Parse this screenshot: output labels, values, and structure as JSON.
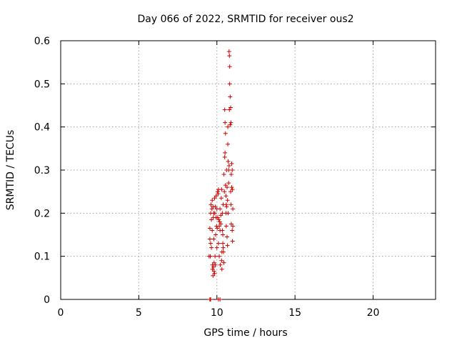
{
  "chart_data": {
    "type": "scatter",
    "title": "Day 066 of 2022, SRMTID for receiver ous2",
    "xlabel": "GPS time / hours",
    "ylabel": "SRMTID / TECUs",
    "xlim": [
      0,
      24
    ],
    "ylim": [
      0,
      0.6
    ],
    "xticks": [
      0,
      5,
      10,
      15,
      20
    ],
    "yticks": [
      0,
      0.1,
      0.2,
      0.3,
      0.4,
      0.5,
      0.6
    ],
    "xtick_labels": [
      "0",
      "5",
      "10",
      "15",
      "20"
    ],
    "ytick_labels": [
      "0",
      "0.1",
      "0.2",
      "0.3",
      "0.4",
      "0.5",
      "0.6"
    ],
    "grid": true,
    "marker": "+",
    "color": "#d00000",
    "series": [
      {
        "name": "SRMTID",
        "points": [
          [
            9.55,
            0.0
          ],
          [
            9.6,
            0.0
          ],
          [
            10.1,
            0.0
          ],
          [
            10.2,
            0.0
          ],
          [
            9.5,
            0.1
          ],
          [
            9.55,
            0.14
          ],
          [
            9.55,
            0.165
          ],
          [
            9.6,
            0.2
          ],
          [
            9.6,
            0.13
          ],
          [
            9.58,
            0.1
          ],
          [
            9.62,
            0.22
          ],
          [
            9.65,
            0.185
          ],
          [
            9.65,
            0.12
          ],
          [
            9.68,
            0.21
          ],
          [
            9.7,
            0.23
          ],
          [
            9.7,
            0.16
          ],
          [
            9.72,
            0.08
          ],
          [
            9.72,
            0.07
          ],
          [
            9.75,
            0.215
          ],
          [
            9.75,
            0.055
          ],
          [
            9.77,
            0.19
          ],
          [
            9.78,
            0.075
          ],
          [
            9.8,
            0.2
          ],
          [
            9.8,
            0.14
          ],
          [
            9.82,
            0.065
          ],
          [
            9.82,
            0.085
          ],
          [
            9.85,
            0.06
          ],
          [
            9.85,
            0.235
          ],
          [
            9.87,
            0.2
          ],
          [
            9.88,
            0.1
          ],
          [
            9.9,
            0.215
          ],
          [
            9.9,
            0.08
          ],
          [
            9.92,
            0.15
          ],
          [
            9.95,
            0.19
          ],
          [
            9.95,
            0.24
          ],
          [
            9.98,
            0.17
          ],
          [
            10.0,
            0.21
          ],
          [
            10.0,
            0.12
          ],
          [
            10.02,
            0.165
          ],
          [
            10.05,
            0.19
          ],
          [
            10.05,
            0.25
          ],
          [
            10.08,
            0.245
          ],
          [
            10.1,
            0.255
          ],
          [
            10.1,
            0.13
          ],
          [
            10.12,
            0.185
          ],
          [
            10.15,
            0.17
          ],
          [
            10.15,
            0.1
          ],
          [
            10.18,
            0.18
          ],
          [
            10.2,
            0.21
          ],
          [
            10.2,
            0.16
          ],
          [
            10.22,
            0.08
          ],
          [
            10.25,
            0.175
          ],
          [
            10.25,
            0.195
          ],
          [
            10.28,
            0.235
          ],
          [
            10.3,
            0.255
          ],
          [
            10.3,
            0.09
          ],
          [
            10.32,
            0.07
          ],
          [
            10.32,
            0.11
          ],
          [
            10.35,
            0.2
          ],
          [
            10.35,
            0.16
          ],
          [
            10.38,
            0.13
          ],
          [
            10.38,
            0.15
          ],
          [
            10.4,
            0.12
          ],
          [
            10.4,
            0.22
          ],
          [
            10.42,
            0.11
          ],
          [
            10.45,
            0.085
          ],
          [
            10.45,
            0.29
          ],
          [
            10.48,
            0.25
          ],
          [
            10.5,
            0.44
          ],
          [
            10.5,
            0.33
          ],
          [
            10.52,
            0.41
          ],
          [
            10.52,
            0.34
          ],
          [
            10.55,
            0.385
          ],
          [
            10.55,
            0.265
          ],
          [
            10.58,
            0.24
          ],
          [
            10.58,
            0.2
          ],
          [
            10.6,
            0.22
          ],
          [
            10.6,
            0.17
          ],
          [
            10.62,
            0.3
          ],
          [
            10.62,
            0.215
          ],
          [
            10.65,
            0.26
          ],
          [
            10.65,
            0.145
          ],
          [
            10.68,
            0.23
          ],
          [
            10.68,
            0.125
          ],
          [
            10.7,
            0.4
          ],
          [
            10.7,
            0.36
          ],
          [
            10.72,
            0.32
          ],
          [
            10.72,
            0.2
          ],
          [
            10.75,
            0.27
          ],
          [
            10.75,
            0.3
          ],
          [
            10.78,
            0.575
          ],
          [
            10.78,
            0.31
          ],
          [
            10.8,
            0.565
          ],
          [
            10.8,
            0.44
          ],
          [
            10.82,
            0.54
          ],
          [
            10.82,
            0.5
          ],
          [
            10.85,
            0.47
          ],
          [
            10.85,
            0.405
          ],
          [
            10.88,
            0.445
          ],
          [
            10.88,
            0.25
          ],
          [
            10.9,
            0.41
          ],
          [
            10.9,
            0.22
          ],
          [
            10.92,
            0.29
          ],
          [
            10.92,
            0.175
          ],
          [
            10.95,
            0.315
          ],
          [
            10.95,
            0.26
          ],
          [
            10.98,
            0.3
          ],
          [
            10.98,
            0.16
          ],
          [
            11.0,
            0.255
          ],
          [
            11.0,
            0.135
          ],
          [
            11.02,
            0.21
          ],
          [
            11.02,
            0.17
          ]
        ]
      }
    ]
  }
}
